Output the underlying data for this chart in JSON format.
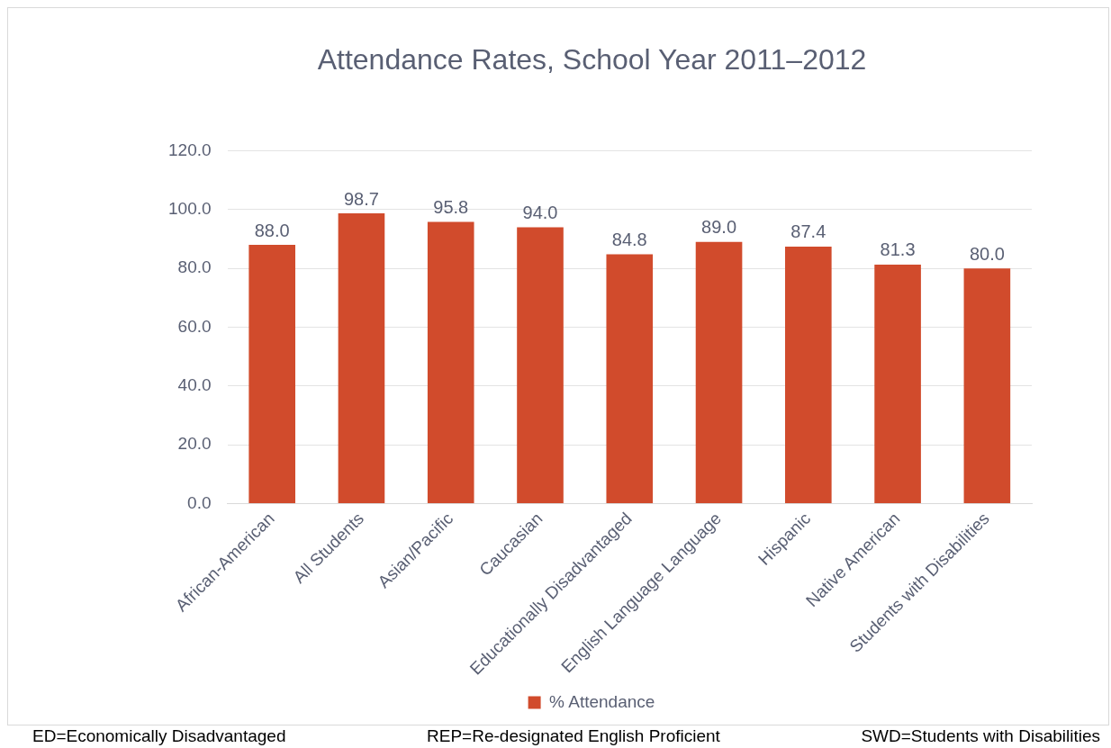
{
  "chart_data": {
    "type": "bar",
    "title": "Attendance Rates, School Year 2011–2012",
    "categories": [
      "African-American",
      "All Students",
      "Asian/Pacific",
      "Caucasian",
      "Educationally Disadvantaged",
      "English Language Language",
      "Hispanic",
      "Native American",
      "Students with Disabilities"
    ],
    "series": [
      {
        "name": "% Attendance",
        "color": "#d14b2c",
        "values": [
          88.0,
          98.7,
          95.8,
          94.0,
          84.8,
          89.0,
          87.4,
          81.3,
          80.0
        ],
        "value_labels": [
          "88.0",
          "98.7",
          "95.8",
          "94.0",
          "84.8",
          "89.0",
          "87.4",
          "81.3",
          "80.0"
        ]
      }
    ],
    "ylim": [
      0,
      120
    ],
    "yticks": [
      {
        "value": 0,
        "label": "0.0"
      },
      {
        "value": 20,
        "label": "20.0"
      },
      {
        "value": 40,
        "label": "40.0"
      },
      {
        "value": 60,
        "label": "60.0"
      },
      {
        "value": 80,
        "label": "80.0"
      },
      {
        "value": 100,
        "label": "100.0"
      },
      {
        "value": 120,
        "label": "120.0"
      }
    ],
    "grid": "y",
    "legend": "bottom",
    "annotations": [
      "ED=Economically Disadvantaged",
      "REP=Re-designated English Proficient",
      "SWD=Students with Disabilities"
    ]
  }
}
